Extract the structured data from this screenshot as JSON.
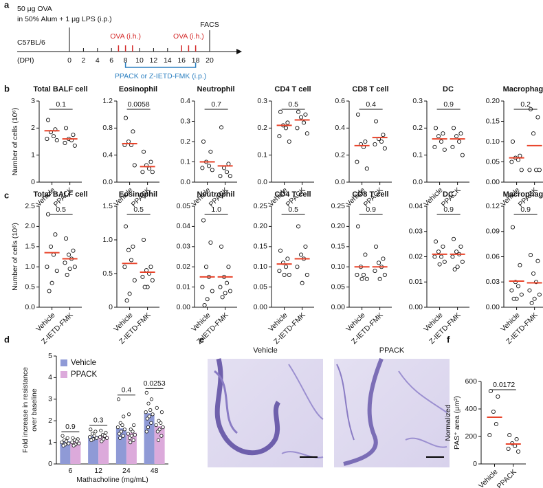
{
  "panel_labels": [
    "a",
    "b",
    "c",
    "d",
    "e",
    "f"
  ],
  "timeline": {
    "treatment": [
      "50 μg OVA",
      "in 50% Alum + 1 μg LPS (i.p.)"
    ],
    "strain": "C57BL/6",
    "axis_label": "(DPI)",
    "days": [
      0,
      2,
      4,
      6,
      8,
      10,
      12,
      14,
      16,
      18,
      20
    ],
    "ova_doses": [
      {
        "label": "OVA (i.h.)",
        "days": [
          7,
          8,
          9
        ]
      },
      {
        "label": "OVA (i.h.)",
        "days": [
          16,
          17,
          18
        ]
      }
    ],
    "endpoint": "FACS",
    "drug_label": "PPACK or Z-IETD-FMK (i.p.)",
    "drug_range": [
      8,
      18
    ]
  },
  "images": {
    "labels": [
      "Vehicle",
      "PPACK"
    ]
  },
  "chart_data": [
    {
      "type": "strip",
      "title": "Total BALF cell",
      "ylabel": [
        "Number of cells (10⁶)"
      ],
      "categories": [
        "Vehicle",
        "PPACK"
      ],
      "values": [
        [
          2.3,
          1.95,
          1.85,
          1.7,
          1.6,
          1.55
        ],
        [
          2.0,
          1.75,
          1.6,
          1.55,
          1.45,
          1.35
        ]
      ],
      "means": [
        1.9,
        1.6
      ],
      "annotation": "0.1",
      "ylim": [
        0,
        3
      ],
      "yticks": [
        0,
        1,
        2,
        3
      ]
    },
    {
      "type": "strip",
      "title": "Eosinophil",
      "categories": [
        "Vehicle",
        "PPACK"
      ],
      "values": [
        [
          0.95,
          0.75,
          0.6,
          0.55,
          0.55,
          0.25
        ],
        [
          0.45,
          0.3,
          0.25,
          0.2,
          0.15,
          0.15
        ]
      ],
      "means": [
        0.57,
        0.23
      ],
      "annotation": "0.0058",
      "ylim": [
        0,
        1.2
      ],
      "yticks": [
        {
          "value": 0,
          "label": "0.0"
        },
        0.4,
        0.8,
        1.2
      ]
    },
    {
      "type": "strip",
      "title": "Neutrophil",
      "categories": [
        "Vehicle",
        "PPACK"
      ],
      "values": [
        [
          0.2,
          0.15,
          0.1,
          0.08,
          0.07,
          0.06
        ],
        [
          0.27,
          0.09,
          0.07,
          0.05,
          0.03,
          0.03
        ]
      ],
      "means": [
        0.1,
        0.08
      ],
      "annotation": "0.7",
      "ylim": [
        0,
        0.4
      ],
      "yticks": [
        {
          "value": 0,
          "label": "0.0"
        },
        0.1,
        0.2,
        0.3,
        0.4
      ]
    },
    {
      "type": "strip",
      "title": "CD4 T cell",
      "categories": [
        "Vehicle",
        "PPACK"
      ],
      "values": [
        [
          0.26,
          0.22,
          0.21,
          0.2,
          0.17,
          0.15
        ],
        [
          0.26,
          0.25,
          0.24,
          0.22,
          0.2,
          0.18
        ]
      ],
      "means": [
        0.21,
        0.23
      ],
      "annotation": "0.5",
      "ylim": [
        0,
        0.3
      ],
      "yticks": [
        {
          "value": 0,
          "label": "0.0"
        },
        0.1,
        0.2,
        0.3
      ]
    },
    {
      "type": "strip",
      "title": "CD8 T cell",
      "categories": [
        "Vehicle",
        "PPACK"
      ],
      "values": [
        [
          0.5,
          0.3,
          0.28,
          0.26,
          0.15,
          0.1
        ],
        [
          0.45,
          0.35,
          0.32,
          0.3,
          0.28,
          0.25
        ]
      ],
      "means": [
        0.27,
        0.33
      ],
      "annotation": "0.4",
      "ylim": [
        0,
        0.6
      ],
      "yticks": [
        {
          "value": 0,
          "label": "0.0"
        },
        0.2,
        0.4,
        0.6
      ]
    },
    {
      "type": "strip",
      "title": "DC",
      "categories": [
        "Vehicle",
        "PPACK"
      ],
      "values": [
        [
          0.2,
          0.18,
          0.17,
          0.15,
          0.13,
          0.12
        ],
        [
          0.2,
          0.18,
          0.17,
          0.15,
          0.13,
          0.1
        ]
      ],
      "means": [
        0.16,
        0.16
      ],
      "annotation": "0.9",
      "ylim": [
        0,
        0.3
      ],
      "yticks": [
        {
          "value": 0,
          "label": "0.0"
        },
        0.1,
        0.2,
        0.3
      ]
    },
    {
      "type": "strip",
      "title": "Macrophage",
      "categories": [
        "Vehicle",
        "PPACK"
      ],
      "values": [
        [
          0.1,
          0.065,
          0.06,
          0.055,
          0.05,
          0.03
        ],
        [
          0.18,
          0.16,
          0.12,
          0.03,
          0.03,
          0.03
        ]
      ],
      "means": [
        0.06,
        0.09
      ],
      "annotation": "0.2",
      "ylim": [
        0,
        0.2
      ],
      "yticks": [
        {
          "value": 0,
          "label": "0.00"
        },
        0.05,
        {
          "value": 0.1,
          "label": "0.10"
        },
        0.15,
        {
          "value": 0.2,
          "label": "0.20"
        }
      ]
    },
    {
      "type": "strip",
      "title": "Total BALF cell",
      "ylabel": [
        "Number of cells (10⁶)"
      ],
      "categories": [
        "Vehicle",
        "Z-IETD-FMK"
      ],
      "values": [
        [
          2.3,
          1.8,
          1.5,
          1.3,
          1.0,
          0.9,
          0.6,
          0.4
        ],
        [
          1.7,
          1.4,
          1.3,
          1.2,
          1.1,
          1.0,
          0.95,
          0.8
        ]
      ],
      "means": [
        1.35,
        1.2
      ],
      "annotation": "0.5",
      "ylim": [
        0,
        2.5
      ],
      "yticks": [
        {
          "value": 0,
          "label": "0.0"
        },
        0.5,
        {
          "value": 1,
          "label": "1.0"
        },
        1.5,
        {
          "value": 2,
          "label": "2.0"
        },
        2.5
      ]
    },
    {
      "type": "strip",
      "title": "Eosinophil",
      "categories": [
        "Vehicle",
        "Z-IETD-FMK"
      ],
      "values": [
        [
          1.2,
          0.9,
          0.85,
          0.7,
          0.6,
          0.4,
          0.2,
          0.1
        ],
        [
          1.0,
          0.6,
          0.55,
          0.5,
          0.45,
          0.4,
          0.3,
          0.3
        ]
      ],
      "means": [
        0.65,
        0.52
      ],
      "annotation": "0.5",
      "ylim": [
        0,
        1.5
      ],
      "yticks": [
        0,
        0.5,
        {
          "value": 1,
          "label": "1.0"
        },
        1.5
      ]
    },
    {
      "type": "strip",
      "title": "Neutrophil",
      "categories": [
        "Vehicle",
        "Z-IETD-FMK"
      ],
      "values": [
        [
          0.043,
          0.032,
          0.02,
          0.015,
          0.01,
          0.008,
          0.004,
          0.001
        ],
        [
          0.03,
          0.02,
          0.015,
          0.012,
          0.01,
          0.008,
          0.007,
          0.005
        ]
      ],
      "means": [
        0.015,
        0.015
      ],
      "annotation": "1.0",
      "ylim": [
        0,
        0.05
      ],
      "yticks": [
        {
          "value": 0,
          "label": "0.00"
        },
        0.01,
        0.02,
        0.03,
        0.04,
        0.05
      ]
    },
    {
      "type": "strip",
      "title": "CD4 T cell",
      "categories": [
        "Vehicle",
        "Z-IETD-FMK"
      ],
      "values": [
        [
          0.14,
          0.12,
          0.11,
          0.1,
          0.09,
          0.08,
          0.08
        ],
        [
          0.2,
          0.15,
          0.13,
          0.12,
          0.1,
          0.08,
          0.06
        ]
      ],
      "means": [
        0.107,
        0.12
      ],
      "annotation": "0.5",
      "ylim": [
        0,
        0.25
      ],
      "yticks": [
        {
          "value": 0,
          "label": "0.00"
        },
        0.05,
        {
          "value": 0.1,
          "label": "0.10"
        },
        0.15,
        {
          "value": 0.2,
          "label": "0.20"
        },
        0.25
      ]
    },
    {
      "type": "strip",
      "title": "CD8 T cell",
      "categories": [
        "Vehicle",
        "Z-IETD-FMK"
      ],
      "values": [
        [
          0.2,
          0.13,
          0.1,
          0.08,
          0.08,
          0.07,
          0.07
        ],
        [
          0.15,
          0.12,
          0.11,
          0.1,
          0.09,
          0.08,
          0.07
        ]
      ],
      "means": [
        0.1,
        0.1
      ],
      "annotation": "0.9",
      "ylim": [
        0,
        0.25
      ],
      "yticks": [
        {
          "value": 0,
          "label": "0.00"
        },
        0.05,
        {
          "value": 0.1,
          "label": "0.10"
        },
        0.15,
        {
          "value": 0.2,
          "label": "0.20"
        },
        0.25
      ]
    },
    {
      "type": "strip",
      "title": "DC",
      "categories": [
        "Vehicle",
        "Z-IETD-FMK"
      ],
      "values": [
        [
          0.026,
          0.024,
          0.022,
          0.02,
          0.02,
          0.018,
          0.017
        ],
        [
          0.027,
          0.024,
          0.022,
          0.021,
          0.02,
          0.018,
          0.016,
          0.015
        ]
      ],
      "means": [
        0.021,
        0.021
      ],
      "annotation": "0.9",
      "ylim": [
        0,
        0.04
      ],
      "yticks": [
        {
          "value": 0,
          "label": "0.00"
        },
        0.01,
        0.02,
        0.03,
        0.04
      ]
    },
    {
      "type": "strip",
      "title": "Macrophage",
      "categories": [
        "Vehicle",
        "Z-IETD-FMK"
      ],
      "values": [
        [
          0.095,
          0.05,
          0.03,
          0.025,
          0.02,
          0.015,
          0.01,
          0.01
        ],
        [
          0.062,
          0.055,
          0.04,
          0.03,
          0.02,
          0.015,
          0.01,
          0.005
        ]
      ],
      "means": [
        0.031,
        0.029
      ],
      "annotation": "0.9",
      "ylim": [
        0,
        0.12
      ],
      "yticks": [
        {
          "value": 0,
          "label": "0.00"
        },
        0.03,
        0.06,
        0.09,
        0.12
      ]
    },
    {
      "type": "bar",
      "ylabel": [
        "Fold increase in resistance",
        "over baseline"
      ],
      "xlabel": "Mathacholine (mg/mL)",
      "categories": [
        6,
        12,
        24,
        48
      ],
      "legend": "upper left",
      "series": [
        {
          "name": "Vehicle",
          "color": "#8f9ad6",
          "values": [
            1.05,
            1.3,
            1.65,
            2.35
          ],
          "points": [
            [
              1.3,
              1.2,
              1.1,
              1.05,
              1.0,
              0.95,
              0.9,
              0.85
            ],
            [
              1.6,
              1.5,
              1.4,
              1.3,
              1.25,
              1.2,
              1.15,
              1.1
            ],
            [
              3.0,
              2.2,
              1.9,
              1.8,
              1.7,
              1.6,
              1.5,
              1.4,
              1.3,
              1.2
            ],
            [
              3.3,
              3.0,
              2.8,
              2.5,
              2.4,
              2.3,
              2.2,
              2.1,
              1.9,
              1.7,
              1.5
            ]
          ]
        },
        {
          "name": "PPACK",
          "color": "#dcaadb",
          "values": [
            1.05,
            1.3,
            1.45,
            1.75
          ],
          "points": [
            [
              1.2,
              1.15,
              1.1,
              1.05,
              1.0,
              0.95,
              0.9,
              0.85
            ],
            [
              1.55,
              1.45,
              1.35,
              1.3,
              1.25,
              1.2,
              1.15,
              1.05
            ],
            [
              2.3,
              1.8,
              1.6,
              1.5,
              1.4,
              1.35,
              1.3,
              1.2,
              1.1,
              1.0
            ],
            [
              2.6,
              2.4,
              2.0,
              1.9,
              1.8,
              1.7,
              1.6,
              1.5,
              1.3,
              1.1
            ]
          ]
        }
      ],
      "annotations": [
        "0.9",
        "0.3",
        "0.4",
        "0.0253"
      ],
      "ylim": [
        0,
        5
      ],
      "yticks": [
        0,
        1,
        2,
        3,
        4,
        5
      ]
    },
    {
      "type": "strip",
      "ylabel": [
        "Normalized",
        "PAS⁺ area (μm²)"
      ],
      "categories": [
        "Vehicle",
        "PPACK"
      ],
      "values": [
        [
          530,
          490,
          380,
          290,
          210
        ],
        [
          210,
          180,
          150,
          130,
          110,
          90
        ]
      ],
      "means": [
        340,
        145
      ],
      "annotation": "0.0172",
      "ylim": [
        0,
        600
      ],
      "yticks": [
        0,
        200,
        400,
        600
      ]
    }
  ]
}
